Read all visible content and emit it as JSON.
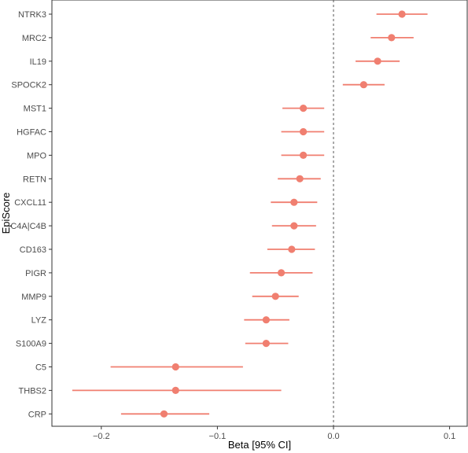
{
  "chart_data": {
    "type": "forest",
    "xlabel": "Beta [95% CI]",
    "ylabel": "EpiScore",
    "xlim": [
      -0.24,
      0.115
    ],
    "xticks": [
      -0.2,
      -0.1,
      0.0,
      0.1
    ],
    "xtick_labels": [
      "−0.2",
      "−0.1",
      "0.0",
      "0.1"
    ],
    "reference_line": 0.0,
    "grid": false,
    "point_color": "#F07F70",
    "categories": [
      "NTRK3",
      "MRC2",
      "IL19",
      "SPOCK2",
      "MST1",
      "HGFAC",
      "MPO",
      "RETN",
      "CXCL11",
      "C4A|C4B",
      "CD163",
      "PIGR",
      "MMP9",
      "LYZ",
      "S100A9",
      "C5",
      "THBS2",
      "CRP"
    ],
    "estimates": [
      0.059,
      0.05,
      0.038,
      0.026,
      -0.026,
      -0.026,
      -0.026,
      -0.029,
      -0.034,
      -0.034,
      -0.036,
      -0.045,
      -0.05,
      -0.058,
      -0.058,
      -0.136,
      -0.136,
      -0.146
    ],
    "ci_low": [
      0.037,
      0.032,
      0.019,
      0.008,
      -0.044,
      -0.045,
      -0.045,
      -0.048,
      -0.054,
      -0.053,
      -0.057,
      -0.072,
      -0.07,
      -0.077,
      -0.076,
      -0.192,
      -0.225,
      -0.183
    ],
    "ci_high": [
      0.081,
      0.069,
      0.057,
      0.044,
      -0.008,
      -0.008,
      -0.008,
      -0.011,
      -0.014,
      -0.015,
      -0.016,
      -0.018,
      -0.03,
      -0.038,
      -0.039,
      -0.078,
      -0.045,
      -0.107
    ]
  }
}
